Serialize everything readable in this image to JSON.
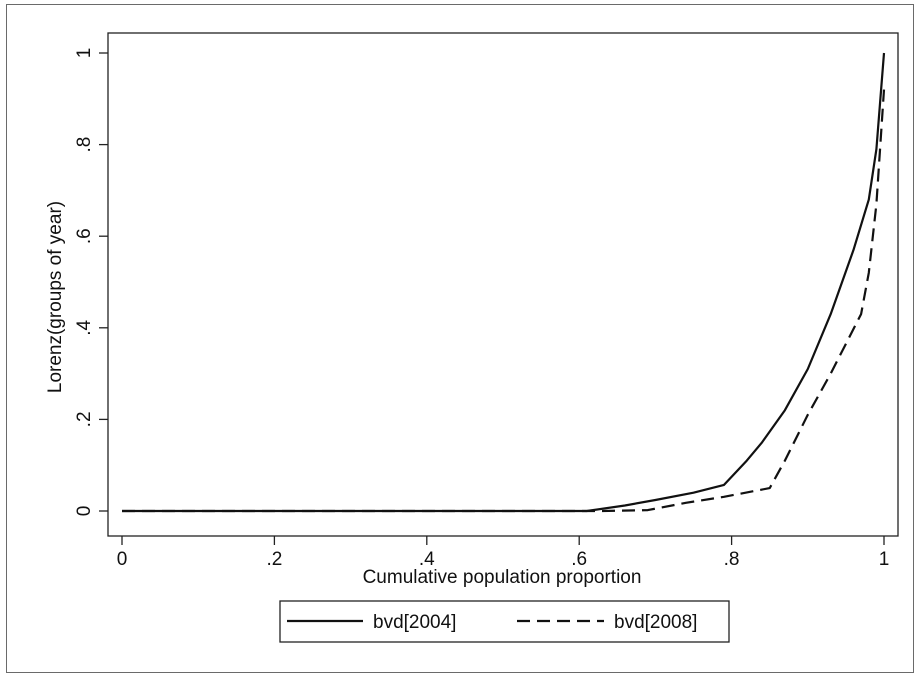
{
  "chart_data": {
    "type": "line",
    "title": "",
    "xlabel": "Cumulative population proportion",
    "ylabel": "Lorenz(groups of year)",
    "xlim": [
      0,
      1
    ],
    "ylim": [
      0,
      1
    ],
    "x_ticks": [
      0,
      0.2,
      0.4,
      0.6,
      0.8,
      1
    ],
    "x_tick_labels": [
      "0",
      ".2",
      ".4",
      ".6",
      ".8",
      "1"
    ],
    "y_ticks": [
      0,
      0.2,
      0.4,
      0.6,
      0.8,
      1
    ],
    "y_tick_labels": [
      "0",
      ".2",
      ".4",
      ".6",
      ".8",
      "1"
    ],
    "grid": false,
    "legend_position": "bottom",
    "series": [
      {
        "name": "bvd[2004]",
        "style": "solid",
        "color": "#111111",
        "points": [
          [
            0,
            0
          ],
          [
            0.61,
            0
          ],
          [
            0.66,
            0.012
          ],
          [
            0.7,
            0.024
          ],
          [
            0.75,
            0.04
          ],
          [
            0.79,
            0.057
          ],
          [
            0.82,
            0.11
          ],
          [
            0.84,
            0.15
          ],
          [
            0.87,
            0.22
          ],
          [
            0.9,
            0.31
          ],
          [
            0.93,
            0.43
          ],
          [
            0.96,
            0.57
          ],
          [
            0.98,
            0.68
          ],
          [
            0.99,
            0.79
          ],
          [
            1.0,
            1.0
          ]
        ]
      },
      {
        "name": "bvd[2008]",
        "style": "dashed",
        "color": "#111111",
        "points": [
          [
            0,
            0
          ],
          [
            0.63,
            0
          ],
          [
            0.69,
            0.002
          ],
          [
            0.74,
            0.018
          ],
          [
            0.79,
            0.031
          ],
          [
            0.85,
            0.05
          ],
          [
            0.87,
            0.11
          ],
          [
            0.9,
            0.21
          ],
          [
            0.93,
            0.3
          ],
          [
            0.97,
            0.43
          ],
          [
            0.98,
            0.52
          ],
          [
            0.99,
            0.67
          ],
          [
            1.0,
            0.92
          ]
        ]
      }
    ]
  }
}
